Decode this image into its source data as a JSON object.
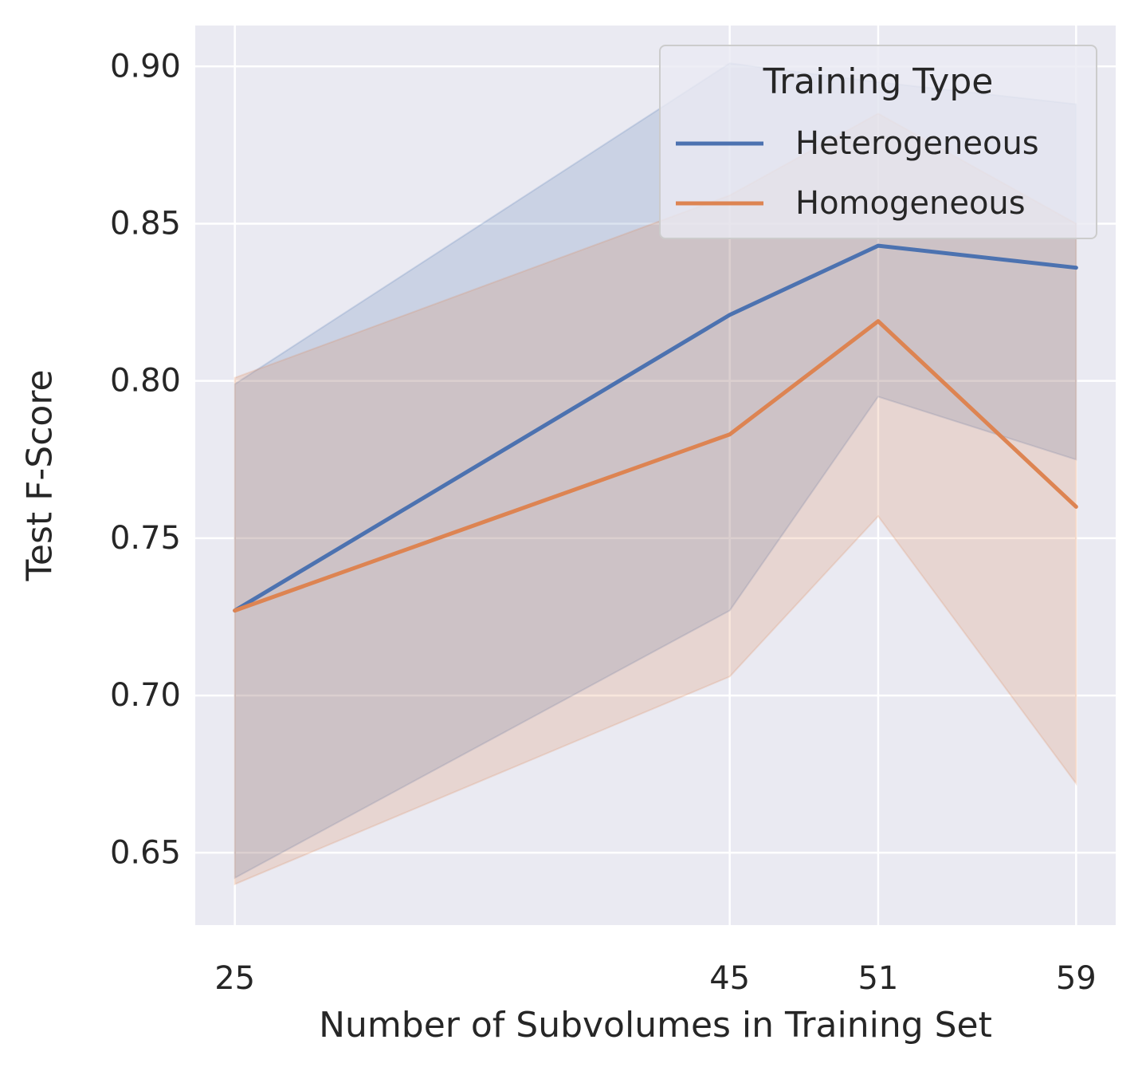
{
  "chart_data": {
    "type": "line",
    "xlabel": "Number of Subvolumes in Training Set",
    "ylabel": "Test F-Score",
    "x": [
      25,
      45,
      51,
      59
    ],
    "xlim": [
      23.4,
      60.6
    ],
    "ylim": [
      0.627,
      0.913
    ],
    "xticks": [
      25,
      45,
      51,
      59
    ],
    "yticks": [
      0.65,
      0.7,
      0.75,
      0.8,
      0.85,
      0.9
    ],
    "ytick_labels": [
      "0.65",
      "0.70",
      "0.75",
      "0.80",
      "0.85",
      "0.90"
    ],
    "grid": true,
    "legend": {
      "title": "Training Type",
      "placement": "top-right"
    },
    "series": [
      {
        "name": "Heterogeneous",
        "color": "#4c72b0",
        "values": [
          0.727,
          0.821,
          0.843,
          0.836
        ],
        "ci_lower": [
          0.642,
          0.727,
          0.795,
          0.775
        ],
        "ci_upper": [
          0.799,
          0.901,
          0.895,
          0.888
        ]
      },
      {
        "name": "Homogeneous",
        "color": "#dd8452",
        "values": [
          0.727,
          0.783,
          0.819,
          0.76
        ],
        "ci_lower": [
          0.64,
          0.706,
          0.757,
          0.672
        ],
        "ci_upper": [
          0.801,
          0.859,
          0.885,
          0.85
        ]
      }
    ],
    "colors": {
      "plot_bg": "#eaeaf2",
      "grid": "#ffffff",
      "text": "#262626"
    }
  }
}
